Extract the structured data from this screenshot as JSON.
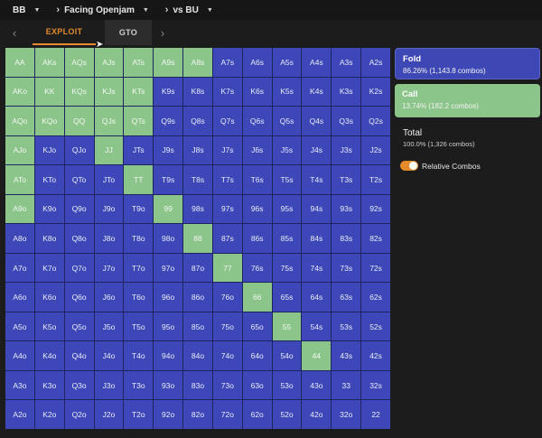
{
  "breadcrumb": [
    {
      "label": "BB"
    },
    {
      "label": "Facing Openjam"
    },
    {
      "label": "vs BU"
    }
  ],
  "tabs": {
    "exploit": "EXPLOIT",
    "gto": "GTO",
    "active": "EXPLOIT"
  },
  "grid": {
    "rows": [
      [
        "AA",
        "AKs",
        "AQs",
        "AJs",
        "ATs",
        "A9s",
        "A8s",
        "A7s",
        "A6s",
        "A5s",
        "A4s",
        "A3s",
        "A2s"
      ],
      [
        "AKo",
        "KK",
        "KQs",
        "KJs",
        "KTs",
        "K9s",
        "K8s",
        "K7s",
        "K6s",
        "K5s",
        "K4s",
        "K3s",
        "K2s"
      ],
      [
        "AQo",
        "KQo",
        "QQ",
        "QJs",
        "QTs",
        "Q9s",
        "Q8s",
        "Q7s",
        "Q6s",
        "Q5s",
        "Q4s",
        "Q3s",
        "Q2s"
      ],
      [
        "AJo",
        "KJo",
        "QJo",
        "JJ",
        "JTs",
        "J9s",
        "J8s",
        "J7s",
        "J6s",
        "J5s",
        "J4s",
        "J3s",
        "J2s"
      ],
      [
        "ATo",
        "KTo",
        "QTo",
        "JTo",
        "TT",
        "T9s",
        "T8s",
        "T7s",
        "T6s",
        "T5s",
        "T4s",
        "T3s",
        "T2s"
      ],
      [
        "A9o",
        "K9o",
        "Q9o",
        "J9o",
        "T9o",
        "99",
        "98s",
        "97s",
        "96s",
        "95s",
        "94s",
        "93s",
        "92s"
      ],
      [
        "A8o",
        "K8o",
        "Q8o",
        "J8o",
        "T8o",
        "98o",
        "88",
        "87s",
        "86s",
        "85s",
        "84s",
        "83s",
        "82s"
      ],
      [
        "A7o",
        "K7o",
        "Q7o",
        "J7o",
        "T7o",
        "97o",
        "87o",
        "77",
        "76s",
        "75s",
        "74s",
        "73s",
        "72s"
      ],
      [
        "A6o",
        "K6o",
        "Q6o",
        "J6o",
        "T6o",
        "96o",
        "86o",
        "76o",
        "66",
        "65s",
        "64s",
        "63s",
        "62s"
      ],
      [
        "A5o",
        "K5o",
        "Q5o",
        "J5o",
        "T5o",
        "95o",
        "85o",
        "75o",
        "65o",
        "55",
        "54s",
        "53s",
        "52s"
      ],
      [
        "A4o",
        "K4o",
        "Q4o",
        "J4o",
        "T4o",
        "94o",
        "84o",
        "74o",
        "64o",
        "54o",
        "44",
        "43s",
        "42s"
      ],
      [
        "A3o",
        "K3o",
        "Q3o",
        "J3o",
        "T3o",
        "93o",
        "83o",
        "73o",
        "63o",
        "53o",
        "43o",
        "33",
        "32s"
      ],
      [
        "A2o",
        "K2o",
        "Q2o",
        "J2o",
        "T2o",
        "92o",
        "82o",
        "72o",
        "62o",
        "52o",
        "42o",
        "32o",
        "22"
      ]
    ],
    "actions": [
      [
        "call",
        "call",
        "call",
        "call",
        "call",
        "call",
        "call",
        "fold",
        "fold",
        "fold",
        "fold",
        "fold",
        "fold"
      ],
      [
        "call",
        "call",
        "call",
        "call",
        "call",
        "fold",
        "fold",
        "fold",
        "fold",
        "fold",
        "fold",
        "fold",
        "fold"
      ],
      [
        "call",
        "call",
        "call",
        "call",
        "call",
        "fold",
        "fold",
        "fold",
        "fold",
        "fold",
        "fold",
        "fold",
        "fold"
      ],
      [
        "call",
        "fold",
        "fold",
        "call",
        "fold",
        "fold",
        "fold",
        "fold",
        "fold",
        "fold",
        "fold",
        "fold",
        "fold"
      ],
      [
        "call",
        "fold",
        "fold",
        "fold",
        "call",
        "fold",
        "fold",
        "fold",
        "fold",
        "fold",
        "fold",
        "fold",
        "fold"
      ],
      [
        "call",
        "fold",
        "fold",
        "fold",
        "fold",
        "call",
        "fold",
        "fold",
        "fold",
        "fold",
        "fold",
        "fold",
        "fold"
      ],
      [
        "fold",
        "fold",
        "fold",
        "fold",
        "fold",
        "fold",
        "call",
        "fold",
        "fold",
        "fold",
        "fold",
        "fold",
        "fold"
      ],
      [
        "fold",
        "fold",
        "fold",
        "fold",
        "fold",
        "fold",
        "fold",
        "call",
        "fold",
        "fold",
        "fold",
        "fold",
        "fold"
      ],
      [
        "fold",
        "fold",
        "fold",
        "fold",
        "fold",
        "fold",
        "fold",
        "fold",
        "call",
        "fold",
        "fold",
        "fold",
        "fold"
      ],
      [
        "fold",
        "fold",
        "fold",
        "fold",
        "fold",
        "fold",
        "fold",
        "fold",
        "fold",
        "call",
        "fold",
        "fold",
        "fold"
      ],
      [
        "fold",
        "fold",
        "fold",
        "fold",
        "fold",
        "fold",
        "fold",
        "fold",
        "fold",
        "fold",
        "call",
        "fold",
        "fold"
      ],
      [
        "fold",
        "fold",
        "fold",
        "fold",
        "fold",
        "fold",
        "fold",
        "fold",
        "fold",
        "fold",
        "fold",
        "fold",
        "fold"
      ],
      [
        "fold",
        "fold",
        "fold",
        "fold",
        "fold",
        "fold",
        "fold",
        "fold",
        "fold",
        "fold",
        "fold",
        "fold",
        "fold"
      ]
    ]
  },
  "panel": {
    "fold": {
      "label": "Fold",
      "stat": "86.26% (1,143.8 combos)"
    },
    "call": {
      "label": "Call",
      "stat": "13.74% (182.2 combos)"
    },
    "total": {
      "label": "Total",
      "stat": "100.0% (1,326 combos)"
    },
    "relative_combos": {
      "label": "Relative Combos",
      "checked": true
    }
  },
  "colors": {
    "fold": "#3d47b8",
    "call": "#8cc58a",
    "accent": "#e58a2e"
  }
}
